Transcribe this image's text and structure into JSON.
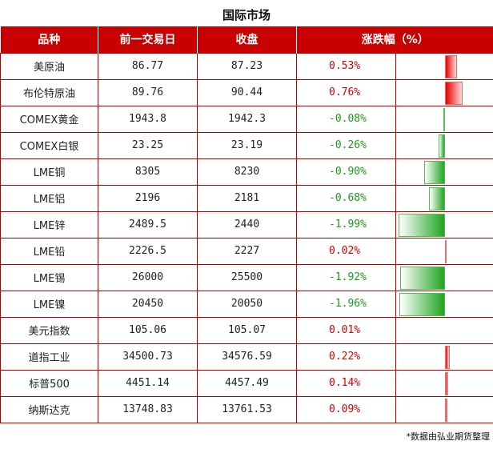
{
  "title": "国际市场",
  "headers": [
    "品种",
    "前一交易日",
    "收盘",
    "涨跌幅（%）"
  ],
  "rows": [
    {
      "name": "美原油",
      "prev": "86.77",
      "close": "87.23",
      "change": "0.53%",
      "pct": 0.53
    },
    {
      "name": "布伦特原油",
      "prev": "89.76",
      "close": "90.44",
      "change": "0.76%",
      "pct": 0.76
    },
    {
      "name": "COMEX黄金",
      "prev": "1943.8",
      "close": "1942.3",
      "change": "-0.08%",
      "pct": -0.08
    },
    {
      "name": "COMEX白银",
      "prev": "23.25",
      "close": "23.19",
      "change": "-0.26%",
      "pct": -0.26
    },
    {
      "name": "LME铜",
      "prev": "8305",
      "close": "8230",
      "change": "-0.90%",
      "pct": -0.9
    },
    {
      "name": "LME铝",
      "prev": "2196",
      "close": "2181",
      "change": "-0.68%",
      "pct": -0.68
    },
    {
      "name": "LME锌",
      "prev": "2489.5",
      "close": "2440",
      "change": "-1.99%",
      "pct": -1.99
    },
    {
      "name": "LME铅",
      "prev": "2226.5",
      "close": "2227",
      "change": "0.02%",
      "pct": 0.02
    },
    {
      "name": "LME锡",
      "prev": "26000",
      "close": "25500",
      "change": "-1.92%",
      "pct": -1.92
    },
    {
      "name": "LME镍",
      "prev": "20450",
      "close": "20050",
      "change": "-1.96%",
      "pct": -1.96
    },
    {
      "name": "美元指数",
      "prev": "105.06",
      "close": "105.07",
      "change": "0.01%",
      "pct": 0.01
    },
    {
      "name": "道指工业",
      "prev": "34500.73",
      "close": "34576.59",
      "change": "0.22%",
      "pct": 0.22
    },
    {
      "name": "标普500",
      "prev": "4451.14",
      "close": "4457.49",
      "change": "0.14%",
      "pct": 0.14
    },
    {
      "name": "纳斯达克",
      "prev": "13748.83",
      "close": "13761.53",
      "change": "0.09%",
      "pct": 0.09
    }
  ],
  "colors": {
    "header_bg": "#c80000",
    "positive": "#d40000",
    "negative": "#1a9a1a"
  },
  "note": "*数据由弘业期货整理"
}
